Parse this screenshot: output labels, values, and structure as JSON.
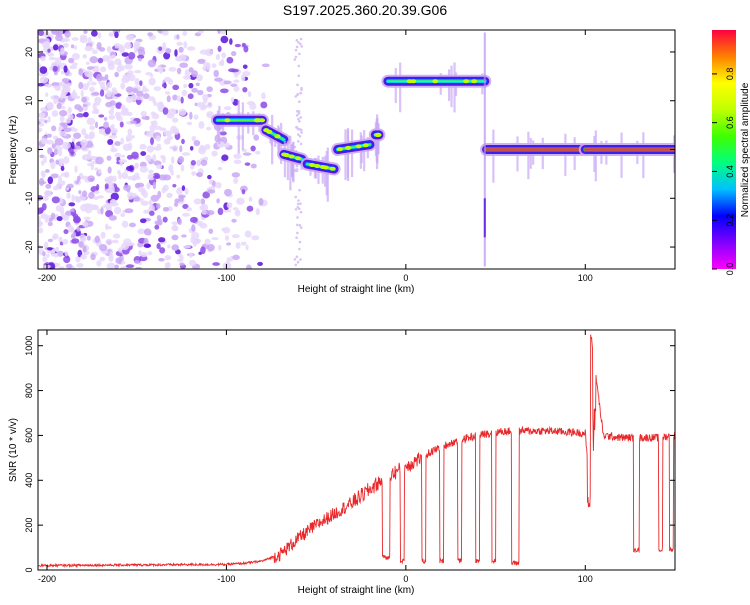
{
  "title": "S197.2025.360.20.39.G06",
  "chart_data": [
    {
      "type": "heatmap",
      "xlabel": "Height of straight line (km)",
      "ylabel": "Frequency (Hz)",
      "xlim": [
        -205,
        150
      ],
      "ylim": [
        -24.5,
        24.5
      ],
      "xticks": [
        -200,
        -100,
        0,
        100
      ],
      "yticks": [
        -20,
        -10,
        0,
        10,
        20
      ],
      "colorbar": {
        "label": "Normalized spectral amplitude",
        "ticks": [
          0.0,
          0.2,
          0.4,
          0.6,
          0.8
        ],
        "range": [
          0,
          0.98
        ],
        "stops": [
          "#ff00ff",
          "#8000ff",
          "#0000ff",
          "#00c0ff",
          "#00ff80",
          "#40ff00",
          "#c0ff00",
          "#ffff00",
          "#ff8000",
          "#ff0040"
        ]
      },
      "noise_region_x": [
        -205,
        -78
      ],
      "segments": [
        {
          "x": [
            -105,
            -80
          ],
          "y": [
            6,
            6
          ]
        },
        {
          "x": [
            -78,
            -68
          ],
          "y": [
            4,
            2
          ]
        },
        {
          "x": [
            -68,
            -58
          ],
          "y": [
            -1,
            -2
          ]
        },
        {
          "x": [
            -55,
            -40
          ],
          "y": [
            -3,
            -4
          ]
        },
        {
          "x": [
            -38,
            -20
          ],
          "y": [
            0,
            1
          ]
        },
        {
          "x": [
            -17,
            -15
          ],
          "y": [
            3,
            3
          ]
        },
        {
          "x": [
            -10,
            44
          ],
          "y": [
            14,
            14
          ]
        },
        {
          "x": [
            45,
            98
          ],
          "y": [
            0,
            0
          ]
        },
        {
          "x": [
            100,
            150
          ],
          "y": [
            0,
            0
          ]
        }
      ]
    },
    {
      "type": "line",
      "xlabel": "Height of straight line (km)",
      "ylabel": "SNR (10 * v/v)",
      "xlim": [
        -205,
        150
      ],
      "ylim": [
        0,
        1070
      ],
      "xticks": [
        -200,
        -100,
        0,
        100
      ],
      "yticks": [
        0,
        200,
        400,
        600,
        800,
        1000
      ],
      "color": "#e8282a",
      "envelope_x": [
        -205,
        -100,
        -90,
        -80,
        -70,
        -60,
        -50,
        -40,
        -30,
        -20,
        -10,
        0,
        10,
        20,
        30,
        40,
        50,
        60,
        70,
        80,
        90,
        100,
        102,
        103,
        110,
        120,
        130,
        140,
        150
      ],
      "envelope_y": [
        20,
        25,
        30,
        40,
        70,
        140,
        200,
        250,
        300,
        360,
        420,
        460,
        510,
        550,
        580,
        600,
        615,
        620,
        620,
        620,
        615,
        610,
        400,
        1060,
        600,
        590,
        590,
        590,
        600
      ],
      "dropouts": [
        {
          "x": [
            -13,
            -9
          ],
          "y": 55
        },
        {
          "x": [
            -3,
            -1
          ],
          "y": 40
        },
        {
          "x": [
            9,
            11
          ],
          "y": 40
        },
        {
          "x": [
            19,
            21
          ],
          "y": 40
        },
        {
          "x": [
            29,
            31
          ],
          "y": 40
        },
        {
          "x": [
            39,
            41
          ],
          "y": 40
        },
        {
          "x": [
            48,
            50
          ],
          "y": 40
        },
        {
          "x": [
            59,
            63
          ],
          "y": 30
        },
        {
          "x": [
            127,
            130
          ],
          "y": 90
        },
        {
          "x": [
            141,
            143
          ],
          "y": 90
        },
        {
          "x": [
            147,
            149
          ],
          "y": 90
        }
      ]
    }
  ]
}
